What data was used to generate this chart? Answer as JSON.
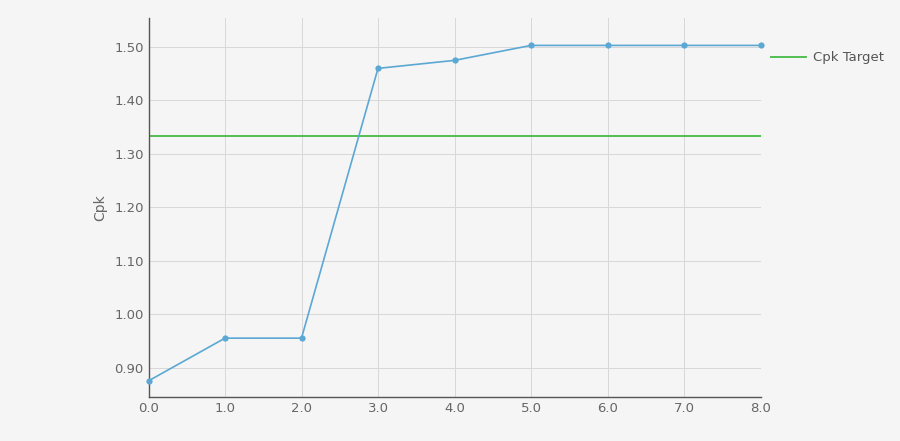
{
  "x": [
    0.0,
    1.0,
    2.0,
    3.0,
    4.0,
    5.0,
    6.0,
    7.0,
    8.0
  ],
  "y": [
    0.875,
    0.955,
    0.955,
    1.46,
    1.475,
    1.503,
    1.503,
    1.503,
    1.503
  ],
  "line_color": "#5ba8d4",
  "dot_color": "#5ba8d4",
  "cpk_target": 1.333,
  "cpk_target_color": "#44bb44",
  "cpk_target_label": "Cpk Target",
  "ylabel": "Cpk",
  "ylim": [
    0.845,
    1.555
  ],
  "xlim": [
    0.0,
    8.0
  ],
  "yticks": [
    0.9,
    1.0,
    1.1,
    1.2,
    1.3,
    1.4,
    1.5
  ],
  "xticks": [
    0.0,
    1.0,
    2.0,
    3.0,
    4.0,
    5.0,
    6.0,
    7.0,
    8.0
  ],
  "grid_color": "#d8d8d8",
  "background_color": "#f5f5f5",
  "tick_fontsize": 9.5,
  "label_fontsize": 10,
  "line_width": 1.2,
  "marker_size": 4.5
}
